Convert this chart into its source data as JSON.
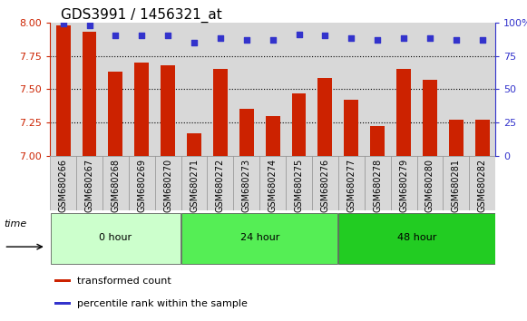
{
  "title": "GDS3991 / 1456321_at",
  "categories": [
    "GSM680266",
    "GSM680267",
    "GSM680268",
    "GSM680269",
    "GSM680270",
    "GSM680271",
    "GSM680272",
    "GSM680273",
    "GSM680274",
    "GSM680275",
    "GSM680276",
    "GSM680277",
    "GSM680278",
    "GSM680279",
    "GSM680280",
    "GSM680281",
    "GSM680282"
  ],
  "bar_values": [
    7.98,
    7.93,
    7.63,
    7.7,
    7.68,
    7.17,
    7.65,
    7.35,
    7.3,
    7.47,
    7.58,
    7.42,
    7.22,
    7.65,
    7.57,
    7.27,
    7.27
  ],
  "percentile_values": [
    99,
    98,
    90,
    90,
    90,
    85,
    88,
    87,
    87,
    91,
    90,
    88,
    87,
    88,
    88,
    87,
    87
  ],
  "bar_color": "#cc2200",
  "dot_color": "#3333cc",
  "ymin": 7.0,
  "ymax": 8.0,
  "yticks": [
    7.0,
    7.25,
    7.5,
    7.75,
    8.0
  ],
  "y2min": 0,
  "y2max": 100,
  "y2ticks": [
    0,
    25,
    50,
    75,
    100
  ],
  "group_labels": [
    "0 hour",
    "24 hour",
    "48 hour"
  ],
  "group_counts": [
    5,
    6,
    6
  ],
  "group_colors": [
    "#ccffcc",
    "#55ee55",
    "#22cc22"
  ],
  "time_label": "time",
  "legend_items": [
    "transformed count",
    "percentile rank within the sample"
  ],
  "legend_colors": [
    "#cc2200",
    "#3333cc"
  ],
  "col_bg_color": "#d8d8d8",
  "plot_bg": "#ffffff",
  "title_fontsize": 11,
  "tick_fontsize": 7,
  "bar_width": 0.55
}
